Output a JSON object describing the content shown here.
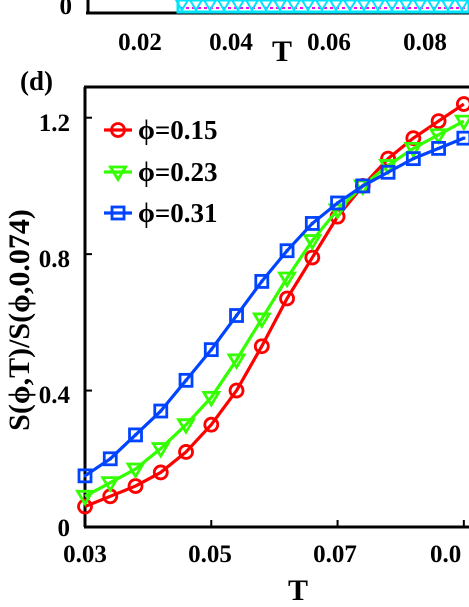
{
  "chart_data": [
    {
      "type": "line",
      "panel_visible": "bottom strip of upper panel (cropped)",
      "xlabel": "T",
      "xticks": [
        "0.02",
        "0.04",
        "0.06",
        "0.08"
      ],
      "yticks": [
        "0"
      ],
      "xlim": [
        0.015,
        0.09
      ],
      "ylim": [
        0,
        1
      ],
      "grid": false,
      "series": [
        {
          "color": "#00e5ff",
          "marker": "triangle-down"
        },
        {
          "color": "#ff00ff",
          "marker": "none"
        }
      ]
    },
    {
      "type": "line",
      "panel_label": "(d)",
      "xlabel": "T",
      "ylabel": "S(ϕ,T)/S(ϕ,0.074)",
      "xticks": [
        "0.03",
        "0.05",
        "0.07",
        "0.0"
      ],
      "yticks": [
        "0",
        "0.4",
        "0.8",
        "1.2"
      ],
      "xlim": [
        0.03,
        0.0905
      ],
      "ylim": [
        0,
        1.29
      ],
      "grid": false,
      "legend_position": "top-left",
      "x": [
        0.03,
        0.034,
        0.038,
        0.042,
        0.046,
        0.05,
        0.054,
        0.058,
        0.062,
        0.066,
        0.07,
        0.074,
        0.078,
        0.082,
        0.086,
        0.09
      ],
      "series": [
        {
          "name": "ϕ=0.15",
          "color": "#ff0000",
          "marker": "circle",
          "values": [
            0.06,
            0.09,
            0.12,
            0.16,
            0.22,
            0.3,
            0.4,
            0.53,
            0.67,
            0.79,
            0.91,
            1.0,
            1.08,
            1.14,
            1.19,
            1.24
          ]
        },
        {
          "name": "ϕ=0.23",
          "color": "#33ff00",
          "marker": "triangle-down",
          "values": [
            0.09,
            0.13,
            0.17,
            0.23,
            0.3,
            0.38,
            0.49,
            0.61,
            0.73,
            0.84,
            0.93,
            1.0,
            1.06,
            1.11,
            1.15,
            1.19
          ]
        },
        {
          "name": "ϕ=0.31",
          "color": "#0044ff",
          "marker": "square",
          "values": [
            0.15,
            0.2,
            0.27,
            0.34,
            0.43,
            0.52,
            0.62,
            0.72,
            0.81,
            0.89,
            0.95,
            1.0,
            1.04,
            1.08,
            1.11,
            1.14
          ]
        }
      ]
    }
  ]
}
